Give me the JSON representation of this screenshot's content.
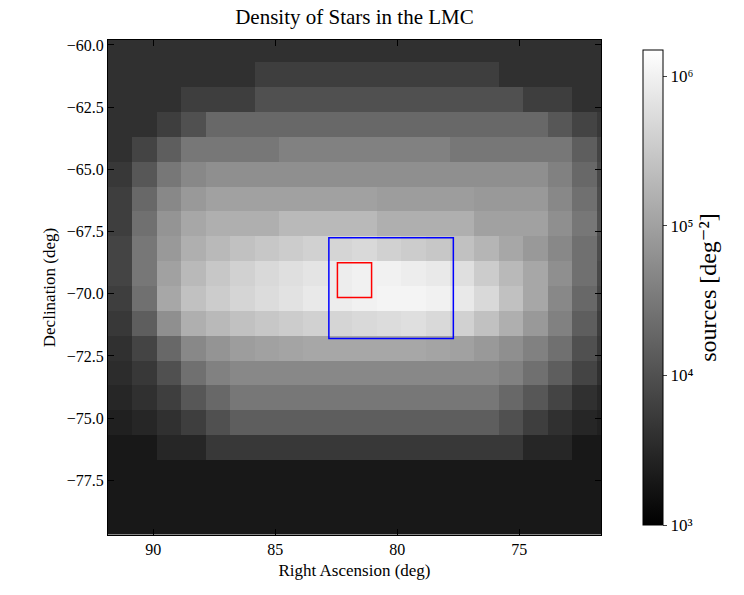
{
  "chart_data": {
    "type": "heatmap",
    "title": "Density of Stars in the LMC",
    "x_label": "Right Ascension (deg)",
    "y_label": "Declination (deg)",
    "colorbar_label": "sources [deg⁻²]",
    "log": true,
    "xlim": [
      91.85,
      71.65
    ],
    "ylim": [
      -79.7,
      -59.8
    ],
    "xticks": [
      90,
      85,
      80,
      75
    ],
    "yticks": [
      {
        "value": -60,
        "label": "−60.0"
      },
      {
        "value": -62.5,
        "label": "−62.5"
      },
      {
        "value": -65,
        "label": "−65.0"
      },
      {
        "value": -67.5,
        "label": "−67.5"
      },
      {
        "value": -70,
        "label": "−70.0"
      },
      {
        "value": -72.5,
        "label": "−72.5"
      },
      {
        "value": -75,
        "label": "−75.0"
      },
      {
        "value": -77.5,
        "label": "−77.5"
      }
    ],
    "zlim": [
      1000,
      1500000
    ],
    "zticks": [
      {
        "value": 1000,
        "label": "10³"
      },
      {
        "value": 10000,
        "label": "10⁴"
      },
      {
        "value": 100000,
        "label": "10⁵"
      },
      {
        "value": 1000000,
        "label": "10⁶"
      }
    ],
    "x": [
      91.35,
      90.35,
      89.35,
      88.35,
      87.35,
      86.35,
      85.35,
      84.35,
      83.35,
      82.35,
      81.35,
      80.35,
      79.35,
      78.35,
      77.35,
      76.35,
      75.35,
      74.35,
      73.35,
      72.35,
      71.35
    ],
    "y": [
      -60.2,
      -61.2,
      -62.2,
      -63.2,
      -64.2,
      -65.2,
      -66.2,
      -67.2,
      -68.2,
      -69.2,
      -70.2,
      -71.2,
      -72.2,
      -73.2,
      -74.2,
      -75.2,
      -76.2,
      -77.2,
      -78.2,
      -79.2
    ],
    "cells": [
      [
        4000,
        4000,
        4000,
        4000,
        4000,
        4000,
        4000,
        4000,
        4000,
        4000,
        4000,
        4000,
        4000,
        4000,
        4000,
        4000,
        4000,
        4000,
        4000,
        4000,
        4000
      ],
      [
        4000,
        4000,
        4000,
        4000,
        4000,
        4000,
        6000,
        6000,
        6000,
        6000,
        6000,
        6000,
        6000,
        6000,
        6000,
        6000,
        4000,
        4000,
        4000,
        4000,
        4000
      ],
      [
        4000,
        4000,
        4000,
        6000,
        6000,
        6000,
        10000,
        10000,
        10000,
        10000,
        10000,
        10000,
        10000,
        10000,
        10000,
        10000,
        10000,
        6000,
        6000,
        4000,
        4000
      ],
      [
        4000,
        4000,
        6000,
        10000,
        20000,
        20000,
        20000,
        20000,
        20000,
        20000,
        20000,
        20000,
        20000,
        20000,
        20000,
        20000,
        20000,
        20000,
        12000,
        7000,
        5000
      ],
      [
        4000,
        7000,
        15000,
        30000,
        30000,
        30000,
        30000,
        40000,
        40000,
        40000,
        40000,
        40000,
        40000,
        40000,
        30000,
        30000,
        30000,
        30000,
        30000,
        15000,
        7000
      ],
      [
        5000,
        12000,
        30000,
        50000,
        60000,
        60000,
        60000,
        60000,
        60000,
        60000,
        60000,
        60000,
        60000,
        60000,
        60000,
        60000,
        60000,
        60000,
        40000,
        20000,
        8000
      ],
      [
        6000,
        20000,
        50000,
        80000,
        100000,
        100000,
        100000,
        100000,
        100000,
        100000,
        100000,
        90000,
        90000,
        90000,
        90000,
        80000,
        80000,
        80000,
        50000,
        25000,
        9000
      ],
      [
        6000,
        25000,
        70000,
        120000,
        150000,
        150000,
        150000,
        200000,
        200000,
        200000,
        200000,
        150000,
        150000,
        150000,
        150000,
        100000,
        100000,
        100000,
        60000,
        30000,
        10000
      ],
      [
        7000,
        30000,
        80000,
        150000,
        200000,
        250000,
        300000,
        350000,
        400000,
        450000,
        500000,
        400000,
        350000,
        300000,
        250000,
        180000,
        120000,
        80000,
        50000,
        25000,
        9000
      ],
      [
        7000,
        30000,
        100000,
        200000,
        300000,
        400000,
        500000,
        600000,
        700000,
        900000,
        1000000,
        1000000,
        900000,
        800000,
        600000,
        350000,
        200000,
        120000,
        60000,
        25000,
        8000
      ],
      [
        6000,
        25000,
        120000,
        250000,
        350000,
        450000,
        550000,
        650000,
        800000,
        900000,
        1000000,
        1100000,
        1100000,
        1000000,
        800000,
        500000,
        250000,
        120000,
        50000,
        20000,
        7000
      ],
      [
        5000,
        15000,
        60000,
        150000,
        200000,
        250000,
        300000,
        350000,
        400000,
        450000,
        500000,
        550000,
        600000,
        500000,
        400000,
        250000,
        150000,
        80000,
        40000,
        15000,
        6000
      ],
      [
        4000,
        7000,
        20000,
        50000,
        70000,
        90000,
        100000,
        110000,
        120000,
        120000,
        120000,
        120000,
        120000,
        110000,
        100000,
        80000,
        60000,
        40000,
        25000,
        10000,
        5000
      ],
      [
        3500,
        5000,
        10000,
        25000,
        40000,
        50000,
        50000,
        50000,
        50000,
        50000,
        50000,
        50000,
        50000,
        50000,
        50000,
        50000,
        40000,
        25000,
        15000,
        7000,
        4000
      ],
      [
        3000,
        4000,
        6000,
        12000,
        20000,
        30000,
        30000,
        30000,
        30000,
        30000,
        30000,
        30000,
        30000,
        30000,
        30000,
        30000,
        20000,
        12000,
        7000,
        4000,
        3000
      ],
      [
        2500,
        3000,
        4000,
        6000,
        10000,
        15000,
        15000,
        15000,
        15000,
        15000,
        15000,
        15000,
        15000,
        15000,
        15000,
        15000,
        10000,
        6000,
        4000,
        3000,
        2500
      ],
      [
        2000,
        2000,
        3000,
        3000,
        5000,
        5000,
        5000,
        5000,
        5000,
        5000,
        5000,
        5000,
        5000,
        5000,
        5000,
        5000,
        5000,
        3000,
        3000,
        2000,
        2000
      ],
      [
        2000,
        2000,
        2000,
        2000,
        2000,
        2000,
        2000,
        2000,
        2000,
        2000,
        2000,
        2000,
        2000,
        2000,
        2000,
        2000,
        2000,
        2000,
        2000,
        2000,
        2000
      ],
      [
        2000,
        2000,
        2000,
        2000,
        2000,
        2000,
        2000,
        2000,
        2000,
        2000,
        2000,
        2000,
        2000,
        2000,
        2000,
        2000,
        2000,
        2000,
        2000,
        2000,
        2000
      ],
      [
        2000,
        2000,
        2000,
        2000,
        2000,
        2000,
        2000,
        2000,
        2000,
        2000,
        2000,
        2000,
        2000,
        2000,
        2000,
        2000,
        2000,
        2000,
        2000,
        2000,
        2000
      ]
    ],
    "boxes": [
      {
        "x": [
          82.8,
          77.7
        ],
        "y": [
          -67.75,
          -71.8
        ],
        "color": "blue"
      },
      {
        "x": [
          82.45,
          81.05
        ],
        "y": [
          -68.75,
          -70.15
        ],
        "color": "red"
      }
    ]
  }
}
